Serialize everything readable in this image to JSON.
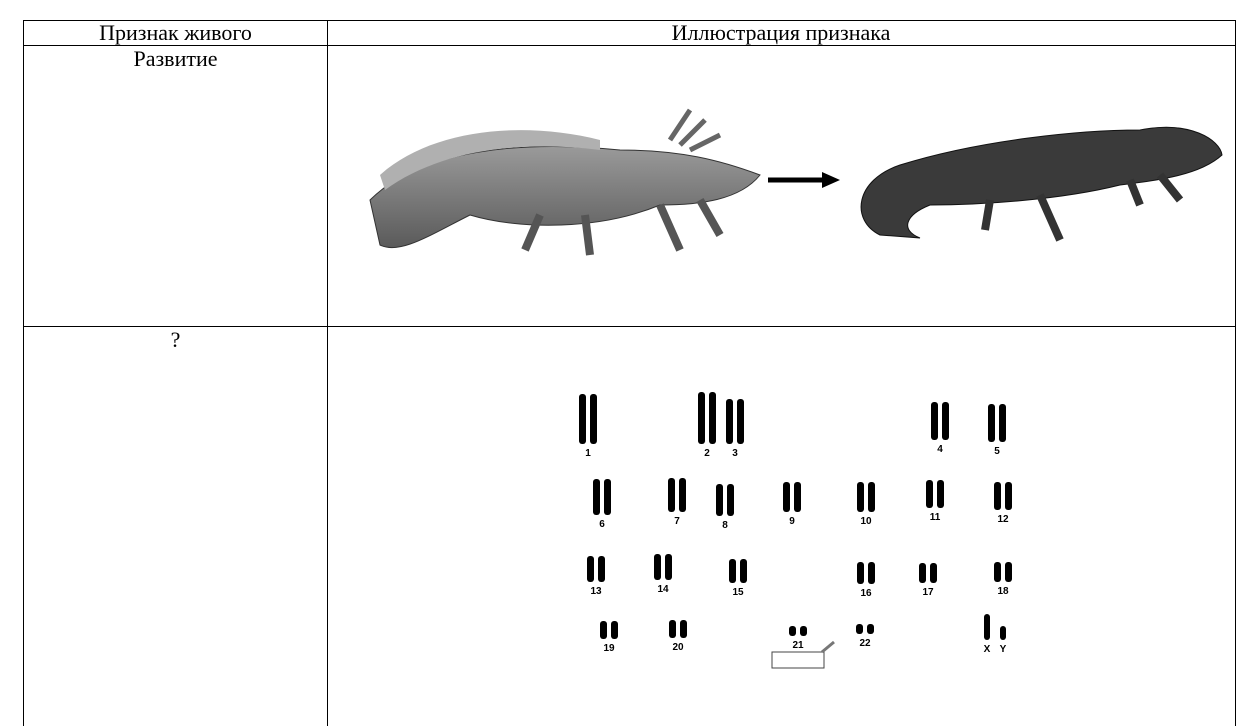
{
  "table": {
    "header": [
      "Признак живого",
      "Иллюстрация признака"
    ],
    "rows": [
      [
        "Развитие"
      ],
      [
        "?"
      ]
    ]
  },
  "karyotype": {
    "labels": [
      "1",
      "2",
      "3",
      "4",
      "5",
      "6",
      "7",
      "8",
      "9",
      "10",
      "11",
      "12",
      "13",
      "14",
      "15",
      "16",
      "17",
      "18",
      "19",
      "20",
      "21",
      "22",
      "X",
      "Y"
    ]
  }
}
